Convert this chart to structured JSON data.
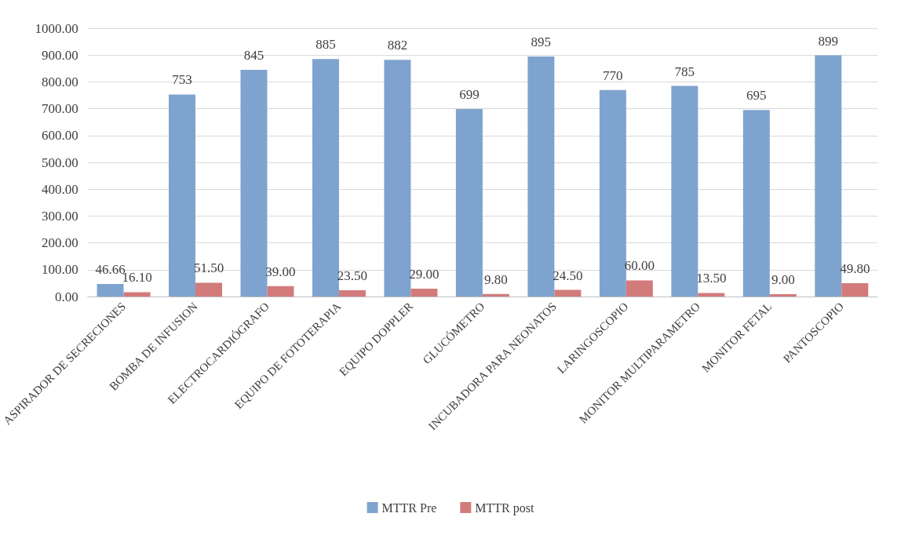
{
  "chart_data": {
    "type": "bar",
    "categories": [
      "ASPIRADOR DE SECRECIONES",
      "BOMBA DE INFUSION",
      "ELECTROCARDIÓGRAFO",
      "EQUIPO DE FOTOTERAPIA",
      "EQUIPO DOPPLER",
      "GLUCÓMETRO",
      "INCUBADORA PARA NEONATOS",
      "LARINGOSCOPIO",
      "MONITOR MULTIPARAMETRO",
      "MONITOR FETAL",
      "PANTOSCOPIO"
    ],
    "series": [
      {
        "name": "MTTR Pre",
        "color": "#7fa3cf",
        "values": [
          46.66,
          753,
          845,
          885,
          882,
          699,
          895,
          770,
          785,
          695,
          899
        ],
        "value_labels": [
          "46.66",
          "753",
          "845",
          "885",
          "882",
          "699",
          "895",
          "770",
          "785",
          "695",
          "899"
        ]
      },
      {
        "name": "MTTR post",
        "color": "#d27b7b",
        "values": [
          16.1,
          51.5,
          39,
          23.5,
          29,
          9.8,
          24.5,
          60,
          13.5,
          9,
          49.8
        ],
        "value_labels": [
          "16.10",
          "51.50",
          "39.00",
          "23.50",
          "29.00",
          "9.80",
          "24.50",
          "60.00",
          "13.50",
          "9.00",
          "49.80"
        ]
      }
    ],
    "ylim": [
      0,
      1000
    ],
    "yticks": [
      {
        "value": 0,
        "label": "0.00"
      },
      {
        "value": 100,
        "label": "100.00"
      },
      {
        "value": 200,
        "label": "200.00"
      },
      {
        "value": 300,
        "label": "300.00"
      },
      {
        "value": 400,
        "label": "400.00"
      },
      {
        "value": 500,
        "label": "500.00"
      },
      {
        "value": 600,
        "label": "600.00"
      },
      {
        "value": 700,
        "label": "700.00"
      },
      {
        "value": 800,
        "label": "800.00"
      },
      {
        "value": 900,
        "label": "900.00"
      },
      {
        "value": 1000,
        "label": "1000.00"
      }
    ],
    "grid": "y",
    "legend": "bottom"
  }
}
